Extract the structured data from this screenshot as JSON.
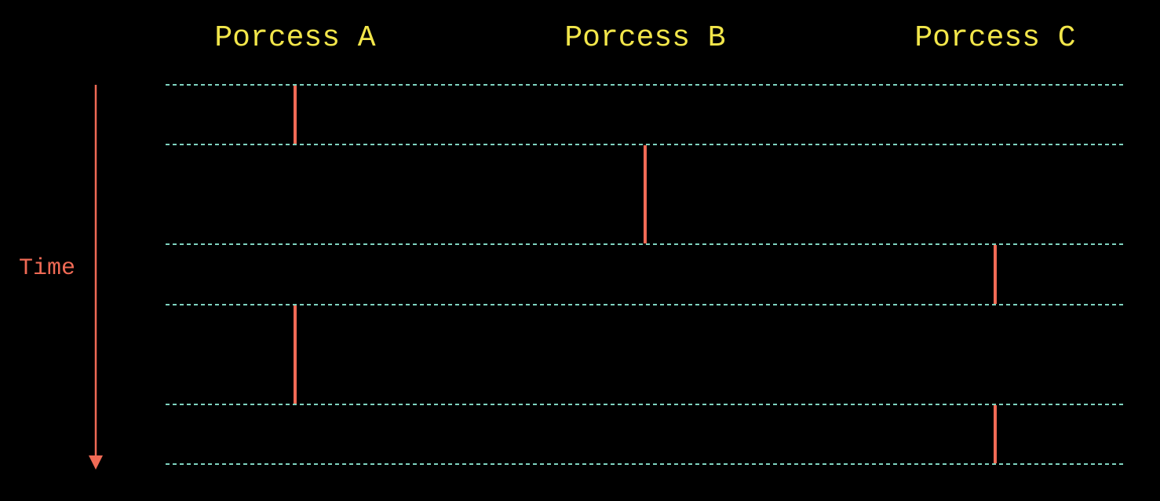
{
  "title": "",
  "processes": [
    {
      "id": "a",
      "label": "Porcess A"
    },
    {
      "id": "b",
      "label": "Porcess B"
    },
    {
      "id": "c",
      "label": "Porcess C"
    }
  ],
  "axis": {
    "label": "Time",
    "direction": "down"
  },
  "time_slices": 6,
  "execution_segments": [
    {
      "process": "a",
      "from_slice": 0,
      "to_slice": 1
    },
    {
      "process": "b",
      "from_slice": 1,
      "to_slice": 2
    },
    {
      "process": "c",
      "from_slice": 2,
      "to_slice": 3
    },
    {
      "process": "a",
      "from_slice": 3,
      "to_slice": 4
    },
    {
      "process": "c",
      "from_slice": 4,
      "to_slice": 5
    }
  ],
  "colors": {
    "background": "#000000",
    "process_label": "#f2e64a",
    "time_axis": "#f06a55",
    "segment": "#f06a55",
    "slice_line": "#7fd3c0"
  }
}
